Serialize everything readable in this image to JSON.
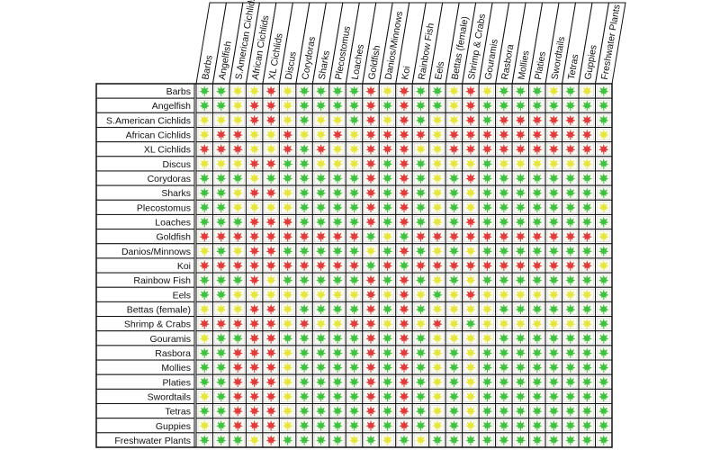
{
  "chart_data": {
    "type": "heatmap",
    "legend": {
      "G": "green",
      "Y": "yellow",
      "R": "red"
    },
    "colors": {
      "G": "#3fc23f",
      "Y": "#e6e63c",
      "R": "#e23b3b"
    },
    "icon": "leaf-icon",
    "species": [
      "Barbs",
      "Angelfish",
      "S.American Cichlids",
      "African Cichlids",
      "XL Cichlids",
      "Discus",
      "Corydoras",
      "Sharks",
      "Plecostomus",
      "Loaches",
      "Goldfish",
      "Danios/Minnows",
      "Koi",
      "Rainbow Fish",
      "Eels",
      "Bettas (female)",
      "Shrimp & Crabs",
      "Gouramis",
      "Rasbora",
      "Mollies",
      "Platies",
      "Swordtails",
      "Tetras",
      "Guppies",
      "Freshwater Plants"
    ],
    "matrix": [
      "GGYYRYGGGGRYRGGYRYGGGYGYG",
      "GGYRRYGGGGRGRGGYRGGGGGGGG",
      "YYYRRYGYYGRYRGYYRGRRRRRRG",
      "YRRYYRYYRYRRRRYRRRRRRRRRY",
      "RRRYYRGRYYRRRYYRRRRRRRRRR",
      "YYYRRGGYYYRGRGYYYGYYYYYYG",
      "GGGYGGGGGGRGRGYGRGGGGGGGG",
      "GGYRRYGGGGRGRGYGYGGGGGGGG",
      "GGYYYYGGGGRGRGYGYGGGGGGGY",
      "GGGRRRGGGGRGRGYGRGGGGGGGG",
      "RRRRRRRRRRGYGRRRRRRRRRRRY",
      "YGYRRGGGGGYGRGYGYGGGGGGGG",
      "RRRRRRRRRRGRGRRRRRRRRRRRY",
      "GGGRYGGGGGRGRGYGYGGGGGGGG",
      "GGYYYYYYYYRYRYGYRYYYYYYYG",
      "YYYRRYGGGGRGRGYYYYGGGGGGG",
      "RRRRRYRYYRRYRYRYGYYYYYYYG",
      "YGGRRGGGGGRGRGYYYYGGGGGGG",
      "GGRRRYGGGGRGRGYGYGGGGGGGG",
      "GGRRRYGGGGRGRGYGYGGGGGGGG",
      "GGRRRYGGGGRGRGYGYGGGGGGGG",
      "YGRRRYGGGGRGRGYGYGGGGGGGG",
      "GGRRRYGGGGRGRGYGYGGGGGGGG",
      "YGRRRYGGGGRGRGYGYGGGGGGGG",
      "GGGYRGGGGYGYGYGGGGGGGGGGG"
    ]
  }
}
